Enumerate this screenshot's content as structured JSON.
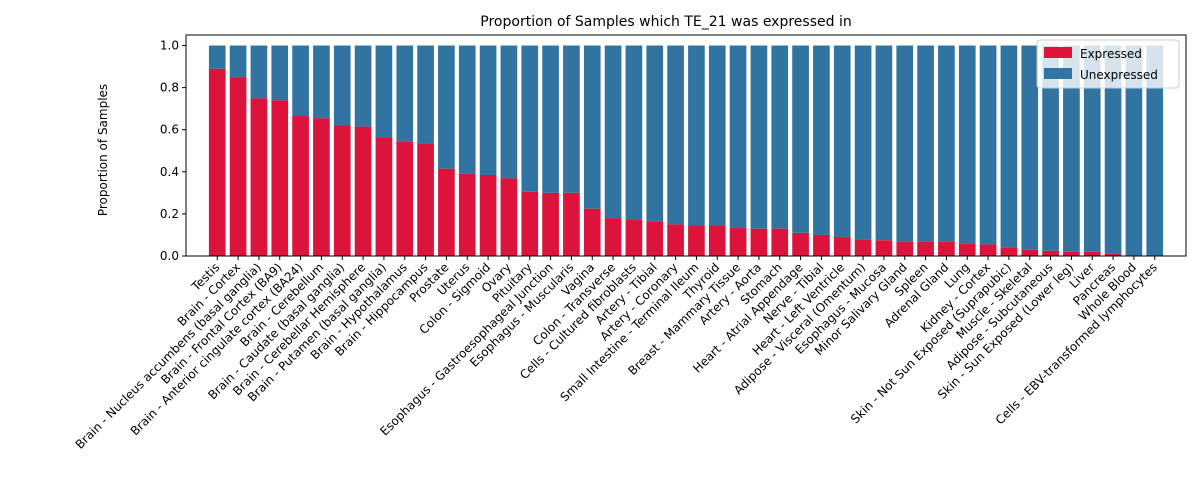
{
  "chart_data": {
    "type": "bar",
    "stacked": true,
    "title": "Proportion of Samples which TE_21 was expressed in",
    "xlabel": "",
    "ylabel": "Proportion of Samples",
    "ylim": [
      0,
      1.05
    ],
    "yticks": [
      "0.0",
      "0.2",
      "0.4",
      "0.6",
      "0.8",
      "1.0"
    ],
    "legend_position": "top-right",
    "categories": [
      "Testis",
      "Brain - Cortex",
      "Brain - Nucleus accumbens (basal ganglia)",
      "Brain - Frontal Cortex (BA9)",
      "Brain - Anterior cingulate cortex (BA24)",
      "Brain - Cerebellum",
      "Brain - Caudate (basal ganglia)",
      "Brain - Cerebellar Hemisphere",
      "Brain - Putamen (basal ganglia)",
      "Brain - Hypothalamus",
      "Brain - Hippocampus",
      "Prostate",
      "Uterus",
      "Colon - Sigmoid",
      "Ovary",
      "Pituitary",
      "Esophagus - Gastroesophageal Junction",
      "Esophagus - Muscularis",
      "Vagina",
      "Colon - Transverse",
      "Cells - Cultured fibroblasts",
      "Artery - Tibial",
      "Artery - Coronary",
      "Small Intestine - Terminal Ileum",
      "Thyroid",
      "Breast - Mammary Tissue",
      "Artery - Aorta",
      "Stomach",
      "Heart - Atrial Appendage",
      "Nerve - Tibial",
      "Heart - Left Ventricle",
      "Adipose - Visceral (Omentum)",
      "Esophagus - Mucosa",
      "Minor Salivary Gland",
      "Spleen",
      "Adrenal Gland",
      "Lung",
      "Kidney - Cortex",
      "Skin - Not Sun Exposed (Suprapubic)",
      "Muscle - Skeletal",
      "Adipose - Subcutaneous",
      "Skin - Sun Exposed (Lower leg)",
      "Liver",
      "Pancreas",
      "Whole Blood",
      "Cells - EBV-transformed lymphocytes"
    ],
    "series": [
      {
        "name": "Expressed",
        "color": "#dc143c",
        "values": [
          0.89,
          0.85,
          0.75,
          0.74,
          0.665,
          0.655,
          0.62,
          0.615,
          0.565,
          0.545,
          0.535,
          0.415,
          0.39,
          0.385,
          0.37,
          0.305,
          0.3,
          0.3,
          0.225,
          0.18,
          0.175,
          0.165,
          0.15,
          0.145,
          0.145,
          0.135,
          0.13,
          0.13,
          0.11,
          0.1,
          0.09,
          0.08,
          0.075,
          0.07,
          0.07,
          0.07,
          0.06,
          0.055,
          0.04,
          0.03,
          0.025,
          0.02,
          0.02,
          0.01,
          0.0,
          0.0
        ]
      },
      {
        "name": "Unexpressed",
        "color": "#3274a1",
        "values": [
          0.11,
          0.15,
          0.25,
          0.26,
          0.335,
          0.345,
          0.38,
          0.385,
          0.435,
          0.455,
          0.465,
          0.585,
          0.61,
          0.615,
          0.63,
          0.695,
          0.7,
          0.7,
          0.775,
          0.82,
          0.825,
          0.835,
          0.85,
          0.855,
          0.855,
          0.865,
          0.87,
          0.87,
          0.89,
          0.9,
          0.91,
          0.92,
          0.925,
          0.93,
          0.93,
          0.93,
          0.94,
          0.945,
          0.96,
          0.97,
          0.975,
          0.98,
          0.98,
          0.99,
          1.0,
          1.0
        ]
      }
    ]
  }
}
